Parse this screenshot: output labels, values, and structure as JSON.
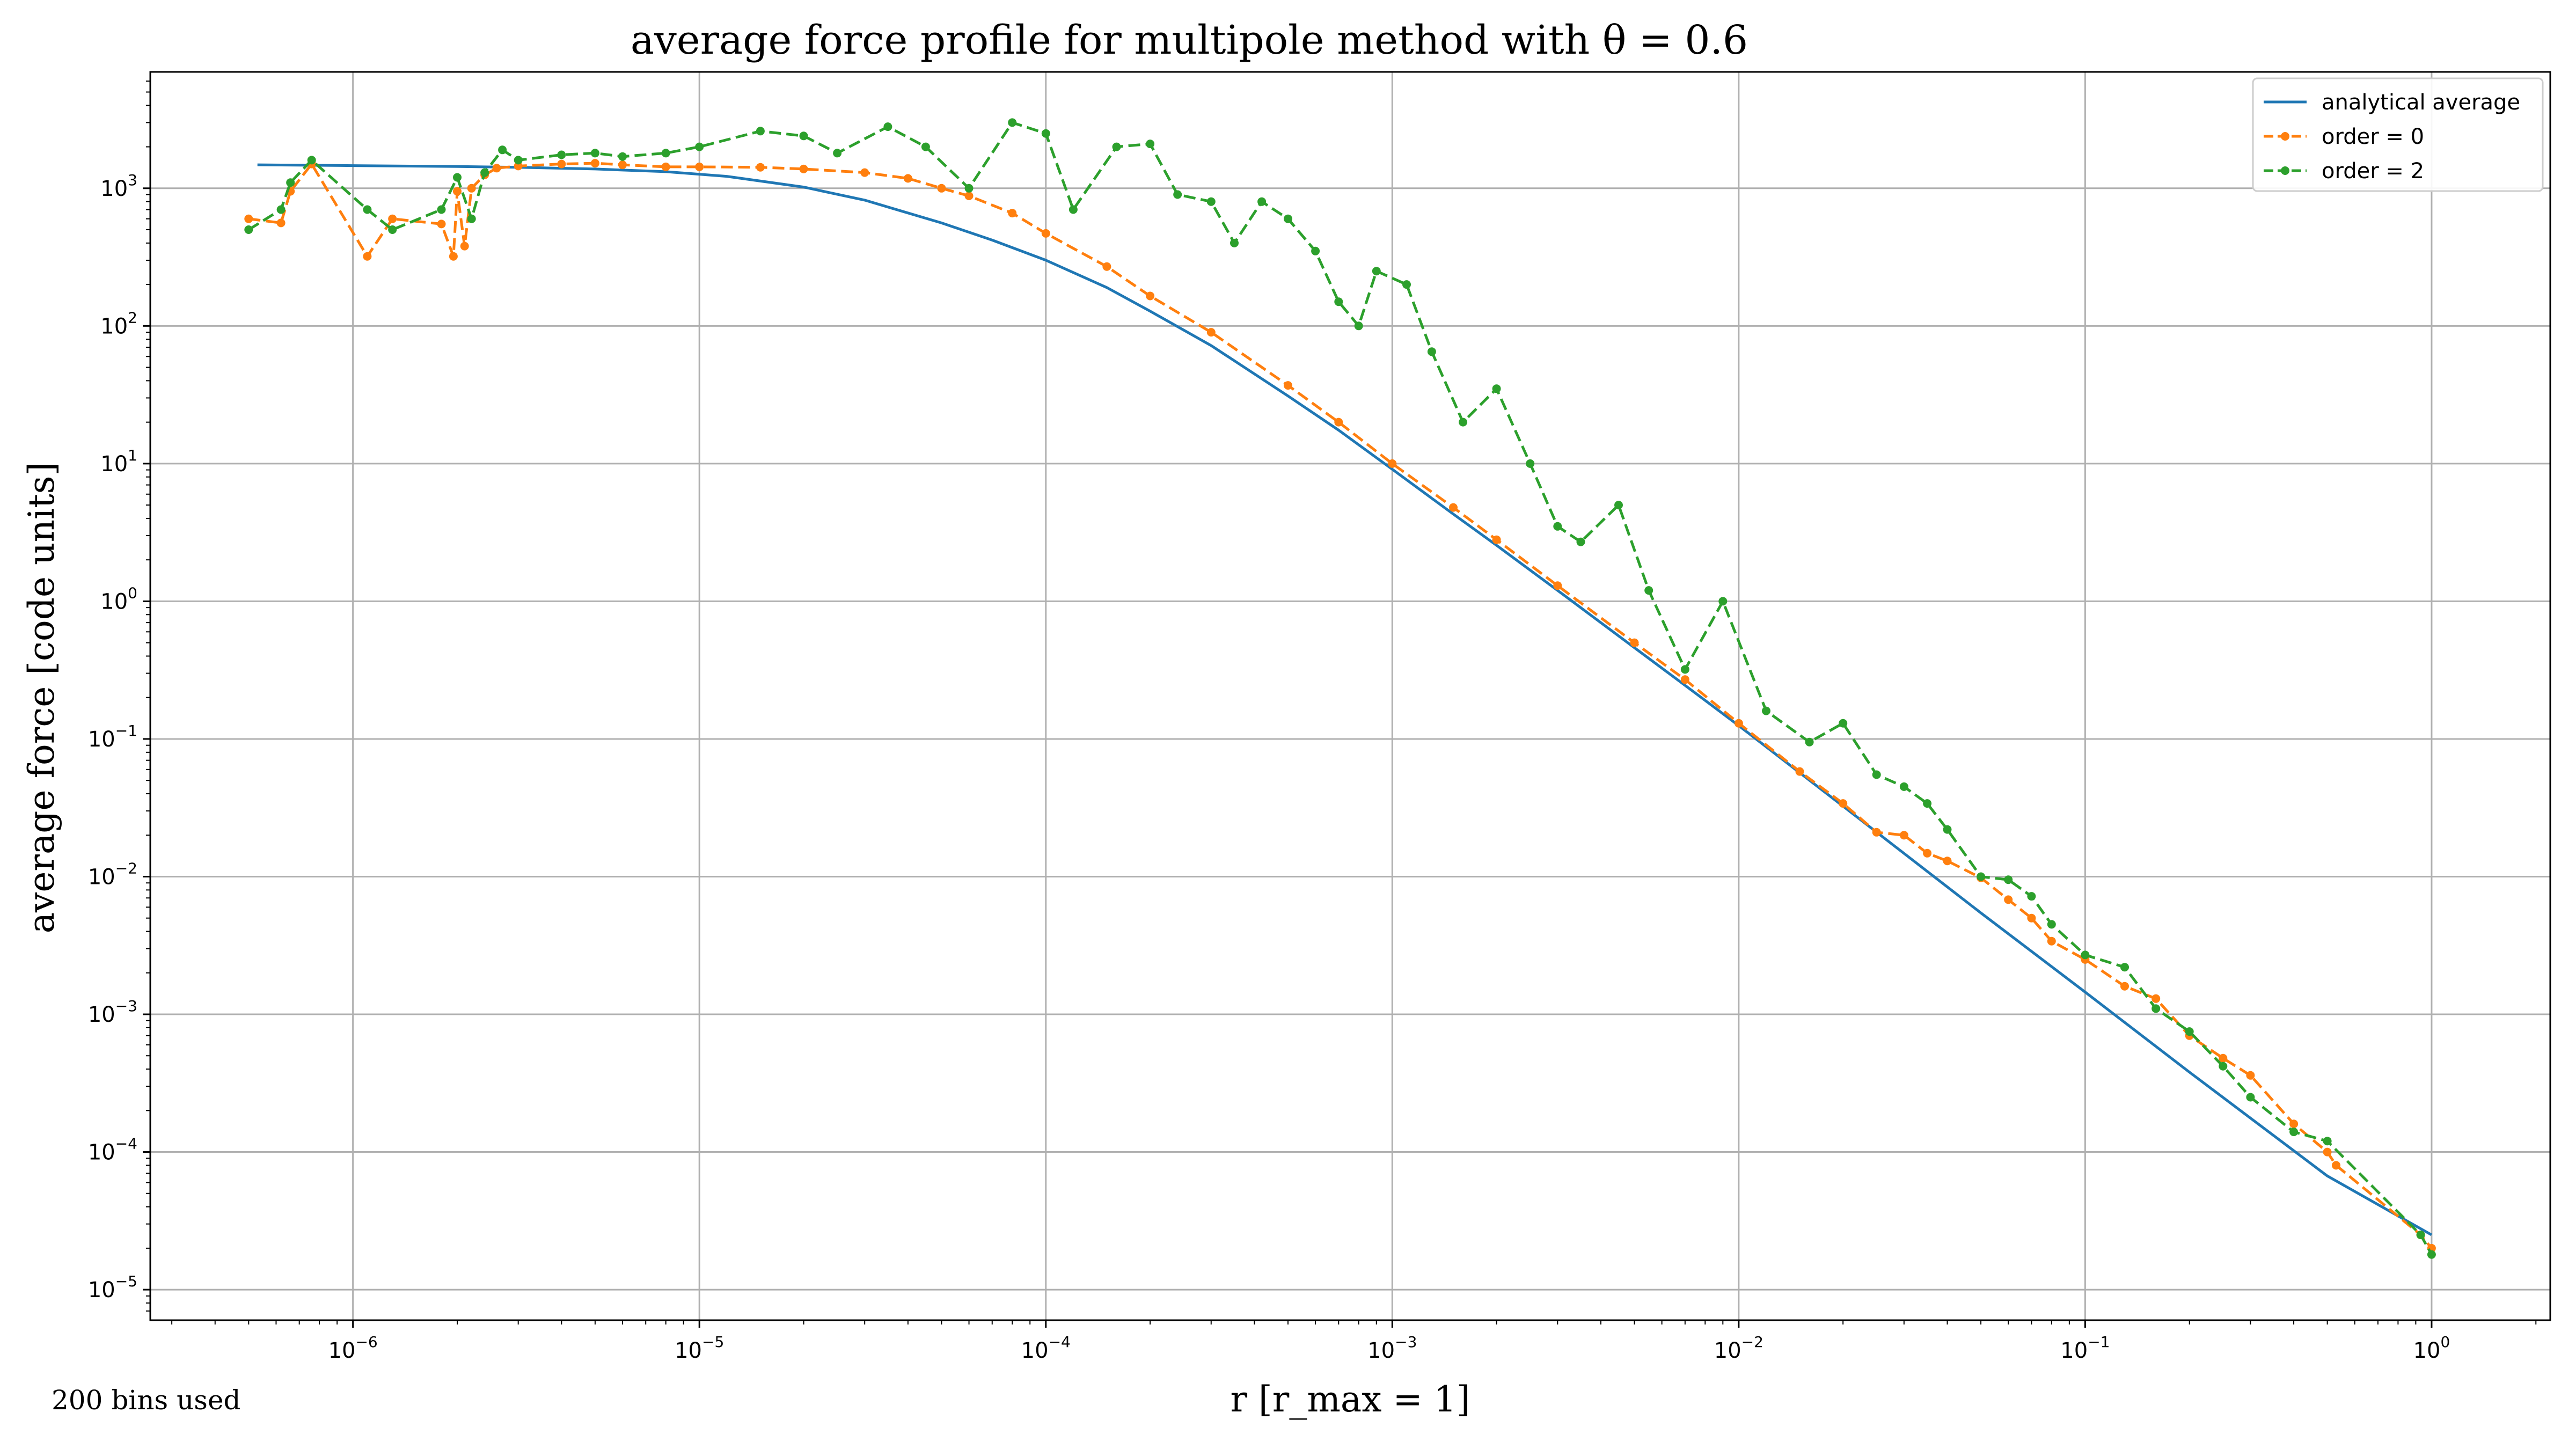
{
  "chart_data": {
    "type": "line",
    "title": "average force profile for multipole method with θ = 0.6",
    "xlabel": "r [r_max = 1]",
    "ylabel": "average force [code units]",
    "x_scale": "log",
    "y_scale": "log",
    "xlim": [
      2.6e-07,
      2.2
    ],
    "ylim": [
      6e-06,
      7000.0
    ],
    "x_ticks": [
      {
        "value": 1e-06,
        "base": "10",
        "exp": "−6"
      },
      {
        "value": 1e-05,
        "base": "10",
        "exp": "−5"
      },
      {
        "value": 0.0001,
        "base": "10",
        "exp": "−4"
      },
      {
        "value": 0.001,
        "base": "10",
        "exp": "−3"
      },
      {
        "value": 0.01,
        "base": "10",
        "exp": "−2"
      },
      {
        "value": 0.1,
        "base": "10",
        "exp": "−1"
      },
      {
        "value": 1,
        "base": "10",
        "exp": "0"
      }
    ],
    "y_ticks": [
      {
        "value": 1e-05,
        "base": "10",
        "exp": "−5"
      },
      {
        "value": 0.0001,
        "base": "10",
        "exp": "−4"
      },
      {
        "value": 0.001,
        "base": "10",
        "exp": "−3"
      },
      {
        "value": 0.01,
        "base": "10",
        "exp": "−2"
      },
      {
        "value": 0.1,
        "base": "10",
        "exp": "−1"
      },
      {
        "value": 1,
        "base": "10",
        "exp": "0"
      },
      {
        "value": 10,
        "base": "10",
        "exp": "1"
      },
      {
        "value": 100,
        "base": "10",
        "exp": "2"
      },
      {
        "value": 1000,
        "base": "10",
        "exp": "3"
      }
    ],
    "grid": true,
    "legend_position": "top-right",
    "annotation": "200 bins used",
    "series": [
      {
        "name": "analytical average",
        "color": "#1f77b4",
        "style": "solid",
        "x": [
          5.3e-07,
          1e-06,
          2e-06,
          3e-06,
          5e-06,
          8e-06,
          1.2e-05,
          2e-05,
          3e-05,
          5e-05,
          7e-05,
          0.0001,
          0.00015,
          0.0002,
          0.0003,
          0.0005,
          0.0007,
          0.001,
          0.0015,
          0.002,
          0.003,
          0.005,
          0.007,
          0.01,
          0.02,
          0.05,
          0.1,
          0.2,
          0.5,
          1.0
        ],
        "y": [
          1480,
          1460,
          1440,
          1420,
          1380,
          1320,
          1220,
          1020,
          820,
          560,
          420,
          300,
          190,
          128,
          72,
          31,
          17.5,
          9.1,
          4.3,
          2.55,
          1.2,
          0.46,
          0.245,
          0.125,
          0.0325,
          0.00545,
          0.00145,
          0.00038,
          6.7e-05,
          2.5e-05
        ]
      },
      {
        "name": "order = 0",
        "color": "#ff7f0e",
        "style": "dashed",
        "x": [
          5e-07,
          6.2e-07,
          6.6e-07,
          7.6e-07,
          1.1e-06,
          1.3e-06,
          1.8e-06,
          1.95e-06,
          2e-06,
          2.1e-06,
          2.2e-06,
          2.4e-06,
          2.6e-06,
          3e-06,
          4e-06,
          5e-06,
          6e-06,
          8e-06,
          1e-05,
          1.5e-05,
          2e-05,
          3e-05,
          4e-05,
          5e-05,
          6e-05,
          8e-05,
          0.0001,
          0.00015,
          0.0002,
          0.0003,
          0.0005,
          0.0007,
          0.001,
          0.0015,
          0.002,
          0.003,
          0.005,
          0.007,
          0.01,
          0.015,
          0.02,
          0.025,
          0.03,
          0.035,
          0.04,
          0.05,
          0.06,
          0.07,
          0.08,
          0.1,
          0.13,
          0.16,
          0.2,
          0.25,
          0.3,
          0.4,
          0.5,
          0.53,
          0.93,
          1.0
        ],
        "y": [
          600,
          560,
          950,
          1500,
          320,
          600,
          550,
          320,
          950,
          380,
          1000,
          1250,
          1400,
          1450,
          1500,
          1520,
          1480,
          1430,
          1430,
          1420,
          1380,
          1300,
          1180,
          1000,
          880,
          660,
          470,
          270,
          165,
          90,
          37,
          20,
          10,
          4.8,
          2.8,
          1.3,
          0.5,
          0.27,
          0.13,
          0.058,
          0.034,
          0.021,
          0.02,
          0.0148,
          0.013,
          0.0098,
          0.0068,
          0.005,
          0.0034,
          0.0025,
          0.0016,
          0.0013,
          0.0007,
          0.00048,
          0.00036,
          0.00016,
          0.0001,
          8e-05,
          2.5e-05,
          2e-05
        ]
      },
      {
        "name": "order = 2",
        "color": "#2ca02c",
        "style": "dashed",
        "x": [
          5e-07,
          6.2e-07,
          6.6e-07,
          7.6e-07,
          1.1e-06,
          1.3e-06,
          1.8e-06,
          2e-06,
          2.2e-06,
          2.4e-06,
          2.7e-06,
          3e-06,
          4e-06,
          5e-06,
          6e-06,
          8e-06,
          1e-05,
          1.5e-05,
          2e-05,
          2.5e-05,
          3.5e-05,
          4.5e-05,
          6e-05,
          8e-05,
          0.0001,
          0.00012,
          0.00016,
          0.0002,
          0.00024,
          0.0003,
          0.00035,
          0.00042,
          0.0005,
          0.0006,
          0.0007,
          0.0008,
          0.0009,
          0.0011,
          0.0013,
          0.0016,
          0.002,
          0.0025,
          0.003,
          0.0035,
          0.0045,
          0.0055,
          0.007,
          0.009,
          0.012,
          0.016,
          0.02,
          0.025,
          0.03,
          0.035,
          0.04,
          0.05,
          0.06,
          0.07,
          0.08,
          0.1,
          0.13,
          0.16,
          0.2,
          0.25,
          0.3,
          0.4,
          0.5,
          0.93,
          1.0
        ],
        "y": [
          500,
          700,
          1100,
          1600,
          700,
          500,
          700,
          1200,
          600,
          1300,
          1900,
          1600,
          1750,
          1800,
          1700,
          1800,
          2000,
          2600,
          2400,
          1800,
          2800,
          2000,
          1000,
          3000,
          2500,
          700,
          2000,
          2100,
          900,
          800,
          400,
          800,
          600,
          350,
          150,
          100,
          250,
          200,
          65,
          20,
          35,
          10,
          3.5,
          2.7,
          5,
          1.2,
          0.32,
          1.0,
          0.16,
          0.095,
          0.13,
          0.055,
          0.045,
          0.034,
          0.022,
          0.01,
          0.0095,
          0.0072,
          0.0045,
          0.0027,
          0.0022,
          0.0011,
          0.00075,
          0.00042,
          0.00025,
          0.00014,
          0.00012,
          2.5e-05,
          1.8e-05
        ]
      }
    ]
  }
}
